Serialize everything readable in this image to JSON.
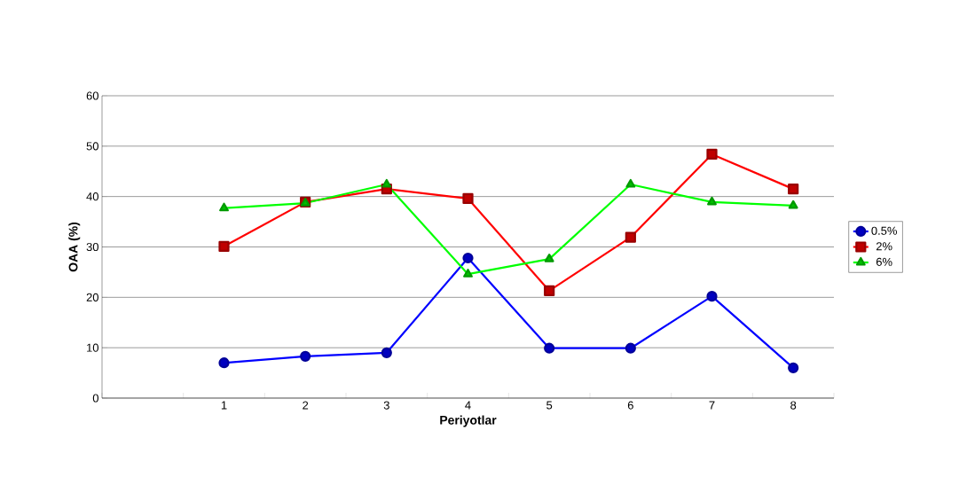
{
  "chart_data": {
    "type": "line",
    "xlabel": "Periyotlar",
    "ylabel": "OAA (%)",
    "categories": [
      null,
      "1",
      "2",
      "3",
      "4",
      "5",
      "6",
      "7",
      "8"
    ],
    "series": [
      {
        "name": "0.5%",
        "color": "#0000ff",
        "marker": "circle",
        "values": [
          null,
          7.0,
          8.3,
          9.0,
          27.8,
          9.9,
          9.9,
          20.2,
          6.0
        ]
      },
      {
        "name": "2%",
        "color": "#ff0000",
        "marker": "square",
        "values": [
          null,
          30.1,
          38.9,
          41.5,
          39.6,
          21.3,
          31.9,
          48.4,
          41.5
        ]
      },
      {
        "name": "6%",
        "color": "#00ff00",
        "marker": "triangle",
        "values": [
          null,
          37.7,
          38.7,
          42.4,
          24.6,
          27.6,
          42.4,
          38.9,
          38.2
        ]
      }
    ],
    "ylim": [
      0,
      60
    ],
    "yticks": [
      0,
      10,
      20,
      30,
      40,
      50,
      60
    ],
    "grid": "y",
    "legend": "right",
    "line_style": "solid"
  }
}
